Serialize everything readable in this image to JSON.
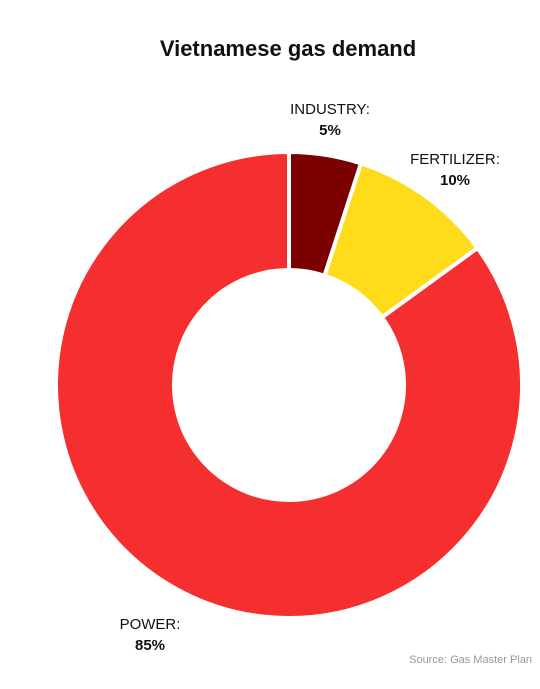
{
  "chart_data": {
    "type": "donut",
    "title": "Vietnamese gas demand",
    "categories": [
      "INDUSTRY:",
      "FERTILIZER:",
      "POWER:"
    ],
    "values": [
      5,
      10,
      85
    ],
    "value_labels": [
      "5%",
      "10%",
      "85%"
    ],
    "colors": [
      "#7b0000",
      "#ffdc1a",
      "#f52f2f"
    ],
    "source": "Source: Gas Master Plan"
  }
}
